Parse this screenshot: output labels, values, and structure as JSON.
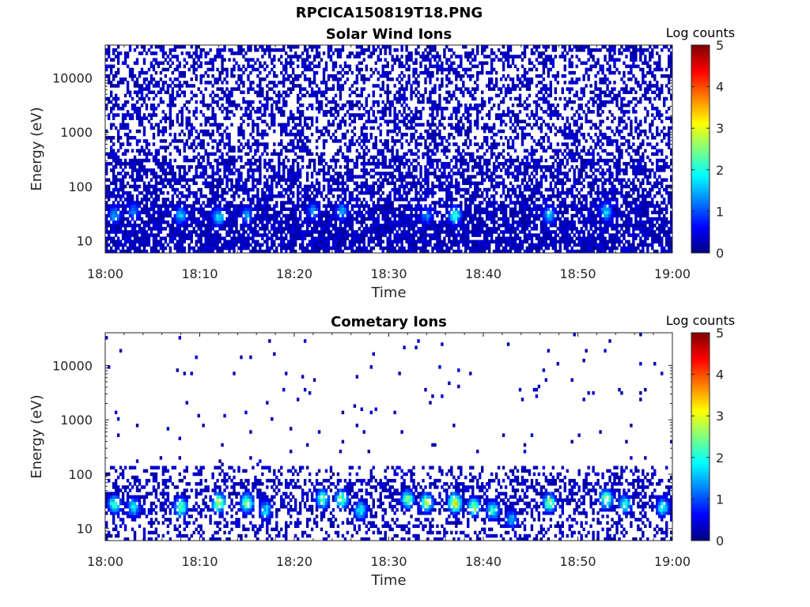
{
  "figure_title": "RPCICA150819T18.PNG",
  "colors": {
    "background": "#ffffff",
    "axis": "#262626",
    "text": "#000000"
  },
  "chart_data": [
    {
      "type": "heatmap",
      "title": "Solar Wind Ions",
      "xlabel": "Time",
      "ylabel": "Energy (eV)",
      "x_ticks": [
        "18:00",
        "18:10",
        "18:20",
        "18:30",
        "18:40",
        "18:50",
        "19:00"
      ],
      "x_range": [
        "18:00",
        "19:00"
      ],
      "y_scale": "log",
      "y_ticks": [
        10,
        100,
        1000,
        10000
      ],
      "y_tick_labels": [
        "10",
        "100",
        "1000",
        "10000"
      ],
      "y_range": [
        6,
        40000
      ],
      "colorbar": {
        "label": "Log counts",
        "range": [
          0,
          5
        ],
        "ticks": [
          0,
          1,
          2,
          3,
          4,
          5
        ],
        "colormap": "jet"
      },
      "grid": false,
      "pattern": "dense",
      "seed": 11,
      "hotspots": [
        {
          "t": "18:01",
          "e": 30,
          "v": 1.6
        },
        {
          "t": "18:03",
          "e": 35,
          "v": 1.4
        },
        {
          "t": "18:08",
          "e": 30,
          "v": 1.7
        },
        {
          "t": "18:12",
          "e": 28,
          "v": 1.9
        },
        {
          "t": "18:15",
          "e": 30,
          "v": 1.5
        },
        {
          "t": "18:22",
          "e": 35,
          "v": 1.4
        },
        {
          "t": "18:25",
          "e": 35,
          "v": 1.6
        },
        {
          "t": "18:34",
          "e": 30,
          "v": 1.4
        },
        {
          "t": "18:37",
          "e": 30,
          "v": 2.2
        },
        {
          "t": "18:47",
          "e": 30,
          "v": 1.8
        },
        {
          "t": "18:53",
          "e": 35,
          "v": 1.8
        }
      ]
    },
    {
      "type": "heatmap",
      "title": "Cometary Ions",
      "xlabel": "Time",
      "ylabel": "Energy (eV)",
      "x_ticks": [
        "18:00",
        "18:10",
        "18:20",
        "18:30",
        "18:40",
        "18:50",
        "19:00"
      ],
      "x_range": [
        "18:00",
        "19:00"
      ],
      "y_scale": "log",
      "y_ticks": [
        10,
        100,
        1000,
        10000
      ],
      "y_tick_labels": [
        "10",
        "100",
        "1000",
        "10000"
      ],
      "y_range": [
        6,
        40000
      ],
      "colorbar": {
        "label": "Log counts",
        "range": [
          0,
          5
        ],
        "ticks": [
          0,
          1,
          2,
          3,
          4,
          5
        ],
        "colormap": "jet"
      },
      "grid": false,
      "pattern": "sparse",
      "seed": 29,
      "hotspots": [
        {
          "t": "18:01",
          "e": 28,
          "v": 2.4
        },
        {
          "t": "18:03",
          "e": 25,
          "v": 2.0
        },
        {
          "t": "18:08",
          "e": 25,
          "v": 2.7
        },
        {
          "t": "18:12",
          "e": 30,
          "v": 3.1
        },
        {
          "t": "18:15",
          "e": 30,
          "v": 2.8
        },
        {
          "t": "18:17",
          "e": 22,
          "v": 1.9
        },
        {
          "t": "18:23",
          "e": 35,
          "v": 2.5
        },
        {
          "t": "18:25",
          "e": 35,
          "v": 2.6
        },
        {
          "t": "18:27",
          "e": 22,
          "v": 2.1
        },
        {
          "t": "18:32",
          "e": 35,
          "v": 2.6
        },
        {
          "t": "18:34",
          "e": 30,
          "v": 2.8
        },
        {
          "t": "18:37",
          "e": 30,
          "v": 3.5
        },
        {
          "t": "18:39",
          "e": 25,
          "v": 2.6
        },
        {
          "t": "18:41",
          "e": 22,
          "v": 2.3
        },
        {
          "t": "18:43",
          "e": 15,
          "v": 1.6
        },
        {
          "t": "18:47",
          "e": 30,
          "v": 2.7
        },
        {
          "t": "18:53",
          "e": 35,
          "v": 2.9
        },
        {
          "t": "18:55",
          "e": 28,
          "v": 2.1
        },
        {
          "t": "18:59",
          "e": 25,
          "v": 2.2
        }
      ]
    }
  ]
}
